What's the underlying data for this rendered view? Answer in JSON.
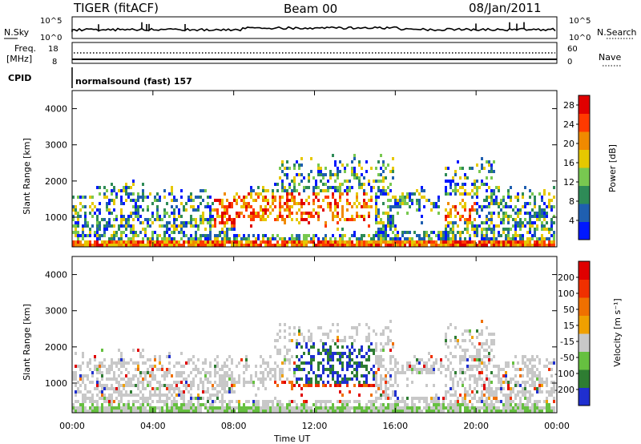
{
  "header": {
    "station": "TIGER (fitACF)",
    "beam": "Beam 00",
    "date": "08/Jan/2011"
  },
  "top_panels": {
    "nsky_label": "N.Sky",
    "nsky_ticks": [
      "10^5",
      "10^0"
    ],
    "nsearch_label": "N.Search",
    "nsearch_ticks": [
      "10^5",
      "10^0"
    ],
    "freq_label_1": "Freq.",
    "freq_label_2": "[MHz]",
    "freq_ticks": [
      "18",
      "8"
    ],
    "nave_label": "Nave",
    "nave_ticks": [
      "60",
      "0"
    ],
    "cpid_label": "CPID",
    "cpid_text": "normalsound (fast) 157"
  },
  "chart_data": [
    {
      "type": "heatmap",
      "title": "",
      "ylabel": "Slant Range [km]",
      "xlabel": "Time UT",
      "ylim": [
        180,
        4500
      ],
      "xlim": [
        0,
        24
      ],
      "yticks": [
        "1000",
        "2000",
        "3000",
        "4000"
      ],
      "xticks": [
        "00:00",
        "04:00",
        "08:00",
        "12:00",
        "16:00",
        "20:00",
        "00:00"
      ],
      "colorbar": {
        "label": "Power [dB]",
        "range": [
          0,
          30
        ],
        "ticks": [
          "4",
          "8",
          "12",
          "16",
          "20",
          "24",
          "28"
        ],
        "colors": [
          "#0018ff",
          "#1f5fb0",
          "#2e8b57",
          "#78c850",
          "#e6c800",
          "#f08a00",
          "#ff3a00",
          "#e00000"
        ]
      }
    },
    {
      "type": "heatmap",
      "title": "",
      "ylabel": "Slant Range [km]",
      "xlabel": "Time UT",
      "ylim": [
        180,
        4500
      ],
      "xlim": [
        0,
        24
      ],
      "yticks": [
        "1000",
        "2000",
        "3000",
        "4000"
      ],
      "xticks": [
        "00:00",
        "04:00",
        "08:00",
        "12:00",
        "16:00",
        "20:00",
        "00:00"
      ],
      "colorbar": {
        "label": "Velocity [m s⁻¹]",
        "range": [
          -250,
          250
        ],
        "ticks": [
          "200",
          "100",
          "50",
          "15",
          "-15",
          "-50",
          "-100",
          "-200"
        ],
        "colors": [
          "#1f2fd0",
          "#2e7d32",
          "#66c040",
          "#c8c8c8",
          "#f0a000",
          "#f07000",
          "#f03000",
          "#e00000"
        ]
      }
    }
  ],
  "footer": {
    "xlabel": "Time UT"
  }
}
